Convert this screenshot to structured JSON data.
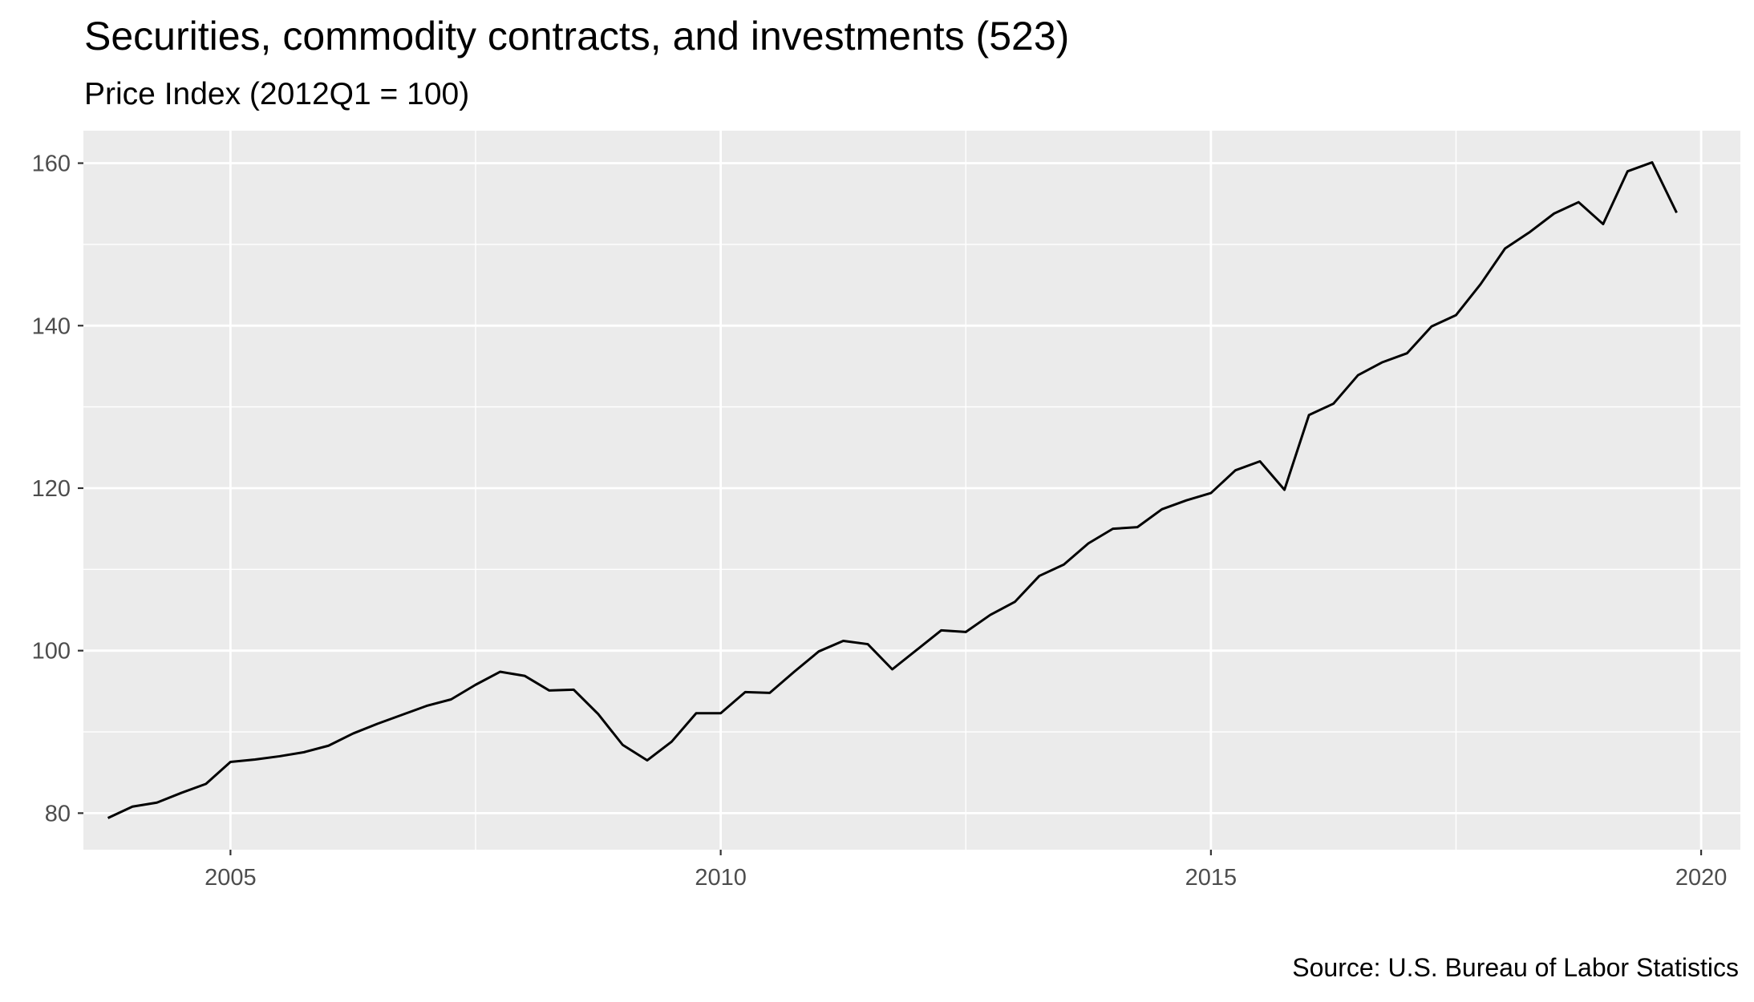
{
  "chart_data": {
    "type": "line",
    "title": "Securities, commodity contracts, and investments (523)",
    "subtitle": "Price Index (2012Q1 = 100)",
    "caption": "Source: U.S. Bureau of Labor Statistics",
    "xlabel": "",
    "ylabel": "",
    "xlim": [
      2003.5,
      2020.4
    ],
    "ylim": [
      75.5,
      164
    ],
    "x_ticks": [
      2005,
      2010,
      2015,
      2020
    ],
    "y_ticks": [
      80,
      100,
      120,
      140,
      160
    ],
    "grid": true,
    "legend": "none",
    "colors": {
      "panel": "#ebebeb",
      "grid": "#ffffff",
      "line": "#000000",
      "tick_text": "#4d4d4d",
      "tick_mark": "#333333"
    },
    "series": [
      {
        "x": [
          2003.75,
          2004.0,
          2004.25,
          2004.5,
          2004.75,
          2005.0,
          2005.25,
          2005.5,
          2005.75,
          2006.0,
          2006.25,
          2006.5,
          2006.75,
          2007.0,
          2007.25,
          2007.5,
          2007.75,
          2008.0,
          2008.25,
          2008.5,
          2008.75,
          2009.0,
          2009.25,
          2009.5,
          2009.75,
          2010.0,
          2010.25,
          2010.5,
          2010.75,
          2011.0,
          2011.25,
          2011.5,
          2011.75,
          2012.0,
          2012.25,
          2012.5,
          2012.75,
          2013.0,
          2013.25,
          2013.5,
          2013.75,
          2014.0,
          2014.25,
          2014.5,
          2014.75,
          2015.0,
          2015.25,
          2015.5,
          2015.75,
          2016.0,
          2016.25,
          2016.5,
          2016.75,
          2017.0,
          2017.25,
          2017.5,
          2017.75,
          2018.0,
          2018.25,
          2018.5,
          2018.75,
          2019.0,
          2019.25,
          2019.5,
          2019.75
        ],
        "values": [
          79.4,
          80.8,
          81.3,
          82.5,
          83.6,
          86.3,
          86.6,
          87.0,
          87.5,
          88.3,
          89.8,
          91.0,
          92.1,
          93.2,
          94.0,
          95.8,
          97.4,
          96.9,
          95.1,
          95.2,
          92.2,
          88.4,
          86.5,
          88.8,
          92.3,
          92.3,
          94.9,
          94.8,
          97.4,
          99.9,
          101.2,
          100.8,
          97.7,
          100.1,
          102.5,
          102.3,
          104.4,
          106.0,
          109.2,
          110.6,
          113.2,
          115.0,
          115.2,
          117.4,
          118.5,
          119.4,
          122.2,
          123.3,
          119.8,
          129.0,
          130.4,
          133.9,
          135.5,
          136.6,
          139.9,
          141.3,
          145.1,
          149.5,
          151.5,
          153.8,
          155.2,
          152.5,
          159.0,
          160.1,
          153.9
        ]
      }
    ]
  }
}
